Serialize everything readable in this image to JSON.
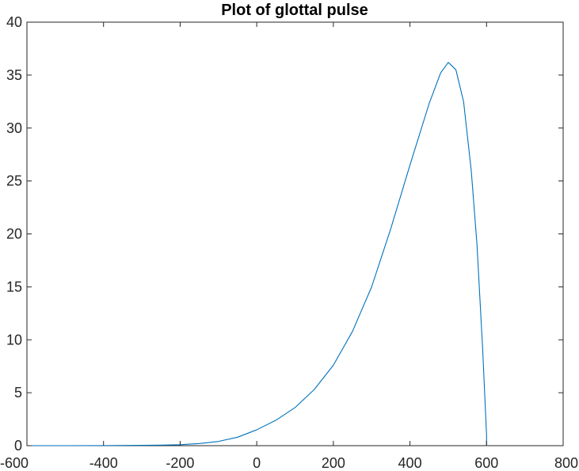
{
  "chart_data": {
    "type": "line",
    "title": "Plot of glottal pulse",
    "xlabel": "",
    "ylabel": "",
    "xlim": [
      -600,
      800
    ],
    "ylim": [
      0,
      40
    ],
    "xticks": [
      -600,
      -400,
      -200,
      0,
      200,
      400,
      600,
      800
    ],
    "yticks": [
      0,
      5,
      10,
      15,
      20,
      25,
      30,
      35,
      40
    ],
    "xtick_labels": [
      "-600",
      "-400",
      "-200",
      "0",
      "200",
      "400",
      "600",
      "800"
    ],
    "ytick_labels": [
      "0",
      "5",
      "10",
      "15",
      "20",
      "25",
      "30",
      "35",
      "40"
    ],
    "grid": false,
    "box": true,
    "series": [
      {
        "color": "#0072BD",
        "x": [
          -600,
          -500,
          -400,
          -300,
          -250,
          -200,
          -150,
          -100,
          -50,
          0,
          50,
          100,
          150,
          200,
          250,
          300,
          350,
          400,
          450,
          480,
          500,
          520,
          540,
          560,
          575,
          590,
          600,
          600
        ],
        "y": [
          0,
          0,
          0.01,
          0.03,
          0.05,
          0.09,
          0.2,
          0.4,
          0.8,
          1.5,
          2.4,
          3.6,
          5.3,
          7.6,
          10.8,
          15.0,
          20.5,
          26.5,
          32.3,
          35.2,
          36.2,
          35.5,
          32.5,
          26.0,
          19.0,
          9.0,
          1.0,
          0
        ]
      }
    ]
  }
}
